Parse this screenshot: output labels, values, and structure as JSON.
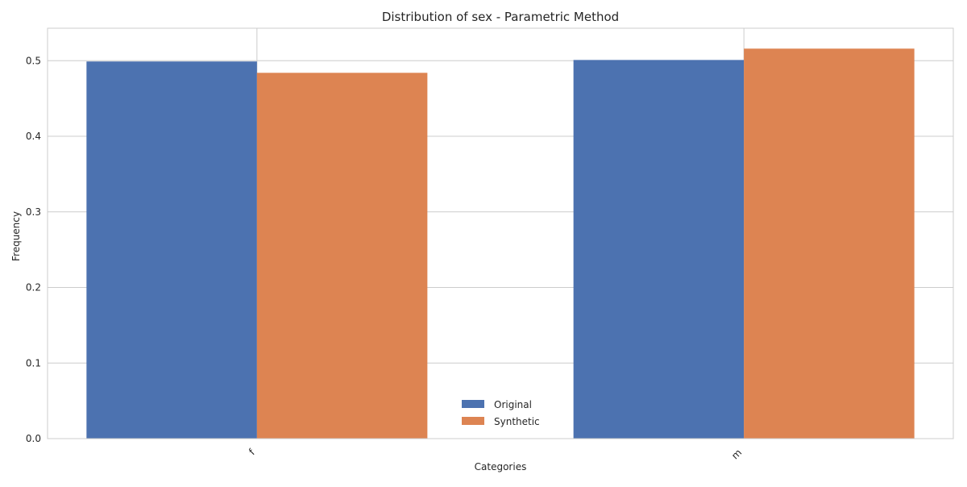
{
  "chart_data": {
    "type": "bar",
    "title": "Distribution of sex - Parametric Method",
    "xlabel": "Categories",
    "ylabel": "Frequency",
    "categories": [
      "f",
      "m"
    ],
    "series": [
      {
        "name": "Original",
        "values": [
          0.499,
          0.501
        ],
        "color": "#4c72b0"
      },
      {
        "name": "Synthetic",
        "values": [
          0.484,
          0.516
        ],
        "color": "#dd8452"
      }
    ],
    "ylim": [
      0,
      0.543
    ],
    "yticks": [
      0.0,
      0.1,
      0.2,
      0.3,
      0.4,
      0.5
    ],
    "ytick_labels": [
      "0.0",
      "0.1",
      "0.2",
      "0.3",
      "0.4",
      "0.5"
    ],
    "grid": true,
    "legend_position": "lower center",
    "xtick_rotation": "45"
  }
}
